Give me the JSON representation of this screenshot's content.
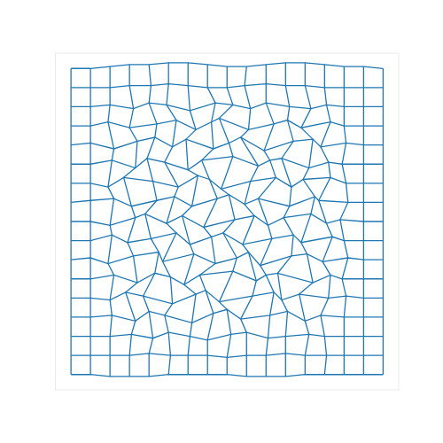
{
  "chart_data": {
    "type": "mesh",
    "color": "#1f77b4",
    "tick_labels": false,
    "xlim": [
      -0.8,
      16.8
    ],
    "ylim": [
      -0.8,
      16.8
    ],
    "x": [
      [
        0,
        1,
        2,
        3,
        4,
        5,
        6,
        7,
        8,
        9,
        10,
        11,
        12,
        13,
        14,
        15,
        16
      ],
      [
        0,
        1,
        2,
        3,
        4,
        5.1,
        6,
        7,
        8,
        9,
        10,
        11,
        12,
        13.1,
        14,
        15,
        16
      ],
      [
        0,
        1,
        2,
        3.1,
        4.2,
        5,
        6.1,
        7,
        8.2,
        9,
        10.1,
        11,
        12.2,
        13,
        14,
        15,
        16
      ],
      [
        0,
        1,
        2.1,
        3.3,
        4,
        4.8,
        6.2,
        7.3,
        8,
        8.7,
        10.2,
        11.1,
        12,
        12.8,
        14,
        15,
        16
      ],
      [
        0,
        1,
        2,
        2.8,
        3.7,
        5.2,
        6.4,
        6.9,
        7.6,
        9.3,
        10.4,
        10.8,
        11.7,
        13.2,
        14.1,
        15,
        16
      ],
      [
        0,
        1,
        2.2,
        3.4,
        4.3,
        5.1,
        5.8,
        6.6,
        8.3,
        9.5,
        10,
        10.6,
        12.4,
        13.3,
        13.9,
        15,
        16
      ],
      [
        0,
        1,
        1.9,
        3.2,
        4.5,
        4.7,
        6.3,
        7.4,
        8.5,
        9.1,
        9.7,
        11.3,
        12.1,
        12.9,
        14.2,
        15,
        16
      ],
      [
        0,
        1,
        2.1,
        2.9,
        4.1,
        5.4,
        6.1,
        7.2,
        7.8,
        8.8,
        10.3,
        11.4,
        11.8,
        13.4,
        14,
        15,
        16
      ],
      [
        0,
        1,
        2,
        3.3,
        3.8,
        4.9,
        5.7,
        6.8,
        8.4,
        9.4,
        10.1,
        10.9,
        12.3,
        13.1,
        13.8,
        15,
        16
      ],
      [
        0,
        1,
        2.2,
        3.1,
        4.4,
        5.3,
        6.2,
        7.5,
        8.1,
        8.9,
        9.6,
        11.2,
        12.5,
        12.7,
        14.2,
        15,
        16
      ],
      [
        0,
        1,
        1.9,
        2.7,
        4.2,
        5.5,
        6.5,
        7.1,
        7.7,
        9.2,
        10.5,
        11.3,
        11.9,
        13.3,
        14.1,
        15,
        16
      ],
      [
        0,
        1,
        2.1,
        3.3,
        3.9,
        4.8,
        6,
        6.7,
        8.3,
        9.6,
        10.2,
        10.8,
        12.2,
        13.2,
        13.9,
        15,
        16
      ],
      [
        0,
        1,
        2.2,
        3.4,
        4.3,
        5.2,
        5.9,
        7.3,
        8.1,
        8.7,
        9.9,
        11.4,
        12.4,
        12.8,
        14.1,
        15,
        16
      ],
      [
        0,
        1,
        1.9,
        3,
        4.4,
        5.4,
        6.4,
        7.2,
        7.6,
        9.1,
        10.4,
        11.1,
        11.8,
        13.3,
        14,
        15,
        16
      ],
      [
        0,
        1,
        2,
        3.2,
        4,
        4.9,
        6.1,
        7.4,
        8.3,
        9.2,
        10,
        11.2,
        12.3,
        13.1,
        14,
        15,
        16
      ],
      [
        0,
        1,
        2,
        3,
        4.1,
        5,
        6,
        7,
        8,
        8.9,
        10,
        11,
        12,
        13,
        14,
        15,
        16
      ],
      [
        0,
        1,
        2,
        3,
        4,
        5,
        6,
        7,
        8,
        9,
        10,
        11,
        12,
        13,
        14,
        15,
        16
      ]
    ],
    "y": [
      [
        0,
        0,
        -0.1,
        -0.1,
        -0.1,
        0,
        0,
        0,
        0,
        -0.1,
        -0.1,
        -0.1,
        0,
        0,
        0,
        0,
        0
      ],
      [
        1,
        1,
        1,
        1,
        1.1,
        1,
        1,
        1,
        0.9,
        1,
        1,
        1.1,
        1,
        1,
        1,
        1,
        1
      ],
      [
        2,
        2,
        2,
        2.1,
        1.9,
        2.2,
        2,
        1.8,
        2.1,
        2.2,
        1.9,
        2,
        2.1,
        2,
        2,
        2,
        2
      ],
      [
        3,
        3,
        3.1,
        2.8,
        3.3,
        3.1,
        2.7,
        3.2,
        3.4,
        2.9,
        3.1,
        3.3,
        2.8,
        3.1,
        3,
        3,
        3
      ],
      [
        4,
        4,
        3.9,
        4.3,
        4.1,
        3.7,
        4.2,
        4.4,
        3.8,
        4.1,
        4.3,
        3.9,
        4.2,
        4,
        4.1,
        4,
        4
      ],
      [
        5,
        5,
        5.2,
        4.8,
        5.3,
        5.1,
        4.7,
        5.2,
        5.4,
        4.9,
        5.2,
        5.3,
        4.8,
        5.2,
        5,
        5,
        5
      ],
      [
        6,
        6.1,
        5.8,
        6.2,
        6.4,
        5.9,
        6.3,
        5.8,
        6.1,
        6.4,
        5.7,
        6.2,
        6.3,
        5.9,
        6.1,
        6,
        6
      ],
      [
        7,
        7,
        7.3,
        6.9,
        7.1,
        7.4,
        6.8,
        7.2,
        7.4,
        6.8,
        7.1,
        7.3,
        6.9,
        7.2,
        7,
        7,
        7
      ],
      [
        8,
        8,
        7.8,
        8.2,
        8.4,
        7.9,
        8.3,
        7.7,
        8.1,
        8.3,
        7.8,
        8.2,
        8.4,
        7.9,
        8.1,
        8,
        8
      ],
      [
        9,
        9.1,
        9.2,
        8.8,
        9.1,
        9.3,
        8.8,
        9.2,
        9.4,
        8.9,
        9.2,
        8.8,
        9.3,
        9.1,
        9,
        9,
        9
      ],
      [
        10,
        10,
        9.8,
        10.3,
        10.1,
        9.8,
        10.4,
        10.2,
        9.7,
        10.1,
        10.3,
        9.8,
        10.2,
        10.3,
        10,
        10,
        10
      ],
      [
        11,
        11,
        11.2,
        10.8,
        11.3,
        11.1,
        10.7,
        11.2,
        11.4,
        10.9,
        11.2,
        11.3,
        10.8,
        11.1,
        11,
        11,
        11
      ],
      [
        12,
        12.1,
        11.8,
        12.2,
        12.4,
        11.9,
        12.3,
        11.8,
        12.1,
        12.4,
        11.7,
        12.2,
        12.3,
        11.9,
        12.1,
        12,
        12
      ],
      [
        13,
        13,
        13.2,
        12.9,
        13.1,
        13.3,
        12.8,
        13.2,
        13.4,
        12.8,
        13.1,
        13.3,
        12.9,
        13.2,
        13,
        13,
        13
      ],
      [
        14,
        14,
        14.1,
        13.9,
        14.2,
        14.1,
        13.8,
        14.2,
        14.1,
        13.9,
        14.2,
        14,
        13.9,
        14.1,
        14,
        14,
        14
      ],
      [
        15,
        15,
        15,
        15.1,
        15.1,
        15.2,
        15.1,
        15,
        15,
        15.1,
        15.2,
        15.1,
        15.1,
        15,
        15,
        15,
        15
      ],
      [
        16,
        16,
        16.1,
        16.2,
        16.2,
        16.3,
        16.3,
        16.2,
        16.1,
        16.1,
        16.2,
        16.3,
        16.3,
        16.2,
        16.1,
        16.1,
        16
      ]
    ]
  }
}
